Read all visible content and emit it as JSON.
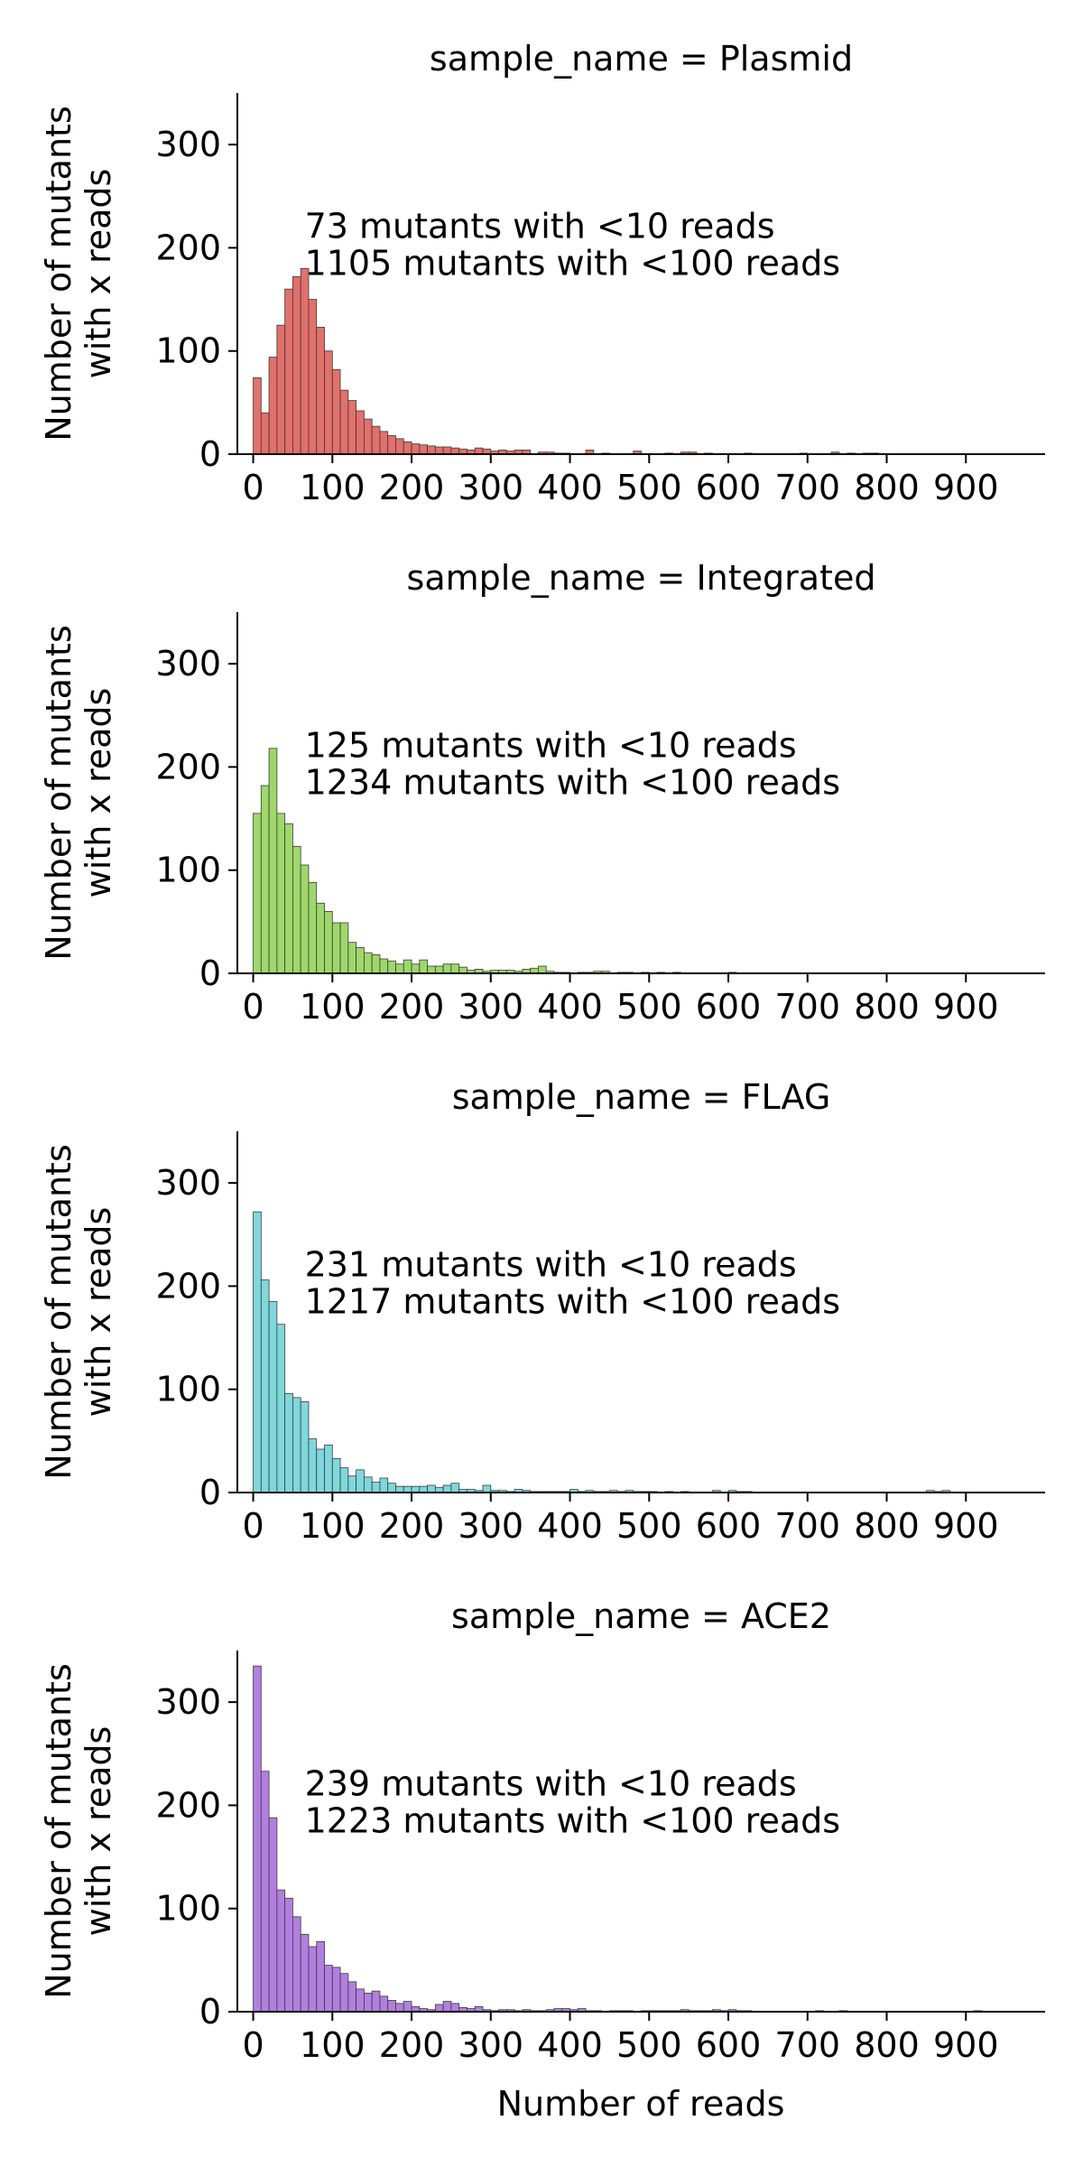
{
  "figure": {
    "xlabel": "Number of reads",
    "ylabel_line1": "Number of mutants",
    "ylabel_line2": "with x reads"
  },
  "chart_data": [
    {
      "type": "bar",
      "title": "sample_name = Plasmid",
      "facet_value": "Plasmid",
      "color": "#e2706b",
      "xlim": [
        -20,
        1000
      ],
      "ylim": [
        0,
        350
      ],
      "xticks": [
        0,
        100,
        200,
        300,
        400,
        500,
        600,
        700,
        800,
        900
      ],
      "yticks": [
        0,
        100,
        200,
        300
      ],
      "bin_width": 10,
      "annotation_line1": "73 mutants with <10 reads",
      "annotation_line2": "1105 mutants with <100 reads",
      "counts": [
        74,
        40,
        94,
        125,
        160,
        172,
        180,
        150,
        123,
        100,
        82,
        62,
        52,
        42,
        34,
        27,
        22,
        18,
        15,
        12,
        10,
        9,
        8,
        7,
        7,
        6,
        5,
        4,
        6,
        5,
        3,
        4,
        3,
        4,
        4,
        0,
        2,
        2,
        1,
        1,
        0,
        0,
        4,
        0,
        1,
        0,
        0,
        0,
        3,
        0,
        0,
        0,
        1,
        0,
        2,
        2,
        0,
        1,
        0,
        0,
        0,
        0,
        1,
        0,
        0,
        0,
        0,
        0,
        0,
        1,
        0,
        0,
        0,
        2,
        0,
        1,
        0,
        1,
        1,
        0,
        0,
        0,
        0,
        0,
        0,
        0,
        0,
        0,
        0,
        0,
        0,
        0,
        0,
        0,
        0,
        0,
        0,
        0,
        0,
        0
      ]
    },
    {
      "type": "bar",
      "title": "sample_name = Integrated",
      "facet_value": "Integrated",
      "color": "#9ed86a",
      "xlim": [
        -20,
        1000
      ],
      "ylim": [
        0,
        350
      ],
      "xticks": [
        0,
        100,
        200,
        300,
        400,
        500,
        600,
        700,
        800,
        900
      ],
      "yticks": [
        0,
        100,
        200,
        300
      ],
      "bin_width": 10,
      "annotation_line1": "125 mutants with <10 reads",
      "annotation_line2": "1234 mutants with <100 reads",
      "counts": [
        155,
        182,
        218,
        155,
        145,
        123,
        105,
        88,
        68,
        60,
        49,
        49,
        30,
        25,
        20,
        18,
        14,
        12,
        9,
        13,
        9,
        13,
        7,
        7,
        9,
        9,
        6,
        3,
        4,
        2,
        3,
        3,
        3,
        2,
        4,
        5,
        7,
        2,
        1,
        1,
        0,
        1,
        1,
        2,
        2,
        0,
        1,
        1,
        0,
        1,
        0,
        1,
        0,
        1,
        0,
        0,
        0,
        0,
        0,
        0,
        1,
        0,
        0,
        0,
        0,
        0,
        0,
        0,
        0,
        0,
        0,
        0,
        0,
        0,
        0,
        0,
        0,
        0,
        0,
        0,
        0,
        0,
        0,
        0,
        0,
        0,
        0,
        0,
        0,
        0,
        0,
        0,
        0,
        0,
        0,
        0,
        0,
        0,
        0,
        0
      ]
    },
    {
      "type": "bar",
      "title": "sample_name = FLAG",
      "facet_value": "FLAG",
      "color": "#7fd8dc",
      "xlim": [
        -20,
        1000
      ],
      "ylim": [
        0,
        350
      ],
      "xticks": [
        0,
        100,
        200,
        300,
        400,
        500,
        600,
        700,
        800,
        900
      ],
      "yticks": [
        0,
        100,
        200,
        300
      ],
      "bin_width": 10,
      "annotation_line1": "231 mutants with <10 reads",
      "annotation_line2": "1217 mutants with <100 reads",
      "counts": [
        272,
        206,
        185,
        163,
        96,
        92,
        88,
        52,
        42,
        46,
        33,
        24,
        16,
        22,
        15,
        10,
        14,
        9,
        6,
        6,
        6,
        6,
        7,
        5,
        7,
        9,
        3,
        3,
        2,
        7,
        2,
        2,
        1,
        3,
        2,
        1,
        1,
        1,
        1,
        1,
        3,
        1,
        2,
        1,
        1,
        2,
        1,
        2,
        1,
        1,
        1,
        0,
        1,
        0,
        1,
        0,
        0,
        0,
        2,
        0,
        2,
        1,
        1,
        0,
        0,
        0,
        0,
        0,
        0,
        0,
        0,
        0,
        0,
        0,
        0,
        0,
        0,
        0,
        0,
        0,
        0,
        0,
        0,
        0,
        0,
        2,
        1,
        2,
        0,
        0,
        0,
        0,
        0,
        0,
        0,
        0,
        0,
        0,
        0,
        0
      ]
    },
    {
      "type": "bar",
      "title": "sample_name = ACE2",
      "facet_value": "ACE2",
      "color": "#b27fe0",
      "xlim": [
        -20,
        1000
      ],
      "ylim": [
        0,
        350
      ],
      "xticks": [
        0,
        100,
        200,
        300,
        400,
        500,
        600,
        700,
        800,
        900
      ],
      "yticks": [
        0,
        100,
        200,
        300
      ],
      "bin_width": 10,
      "annotation_line1": "239 mutants with <10 reads",
      "annotation_line2": "1223 mutants with <100 reads",
      "counts": [
        335,
        233,
        188,
        118,
        110,
        92,
        75,
        63,
        68,
        45,
        43,
        37,
        29,
        22,
        18,
        20,
        15,
        11,
        8,
        10,
        5,
        3,
        2,
        7,
        10,
        8,
        4,
        3,
        5,
        2,
        1,
        2,
        2,
        1,
        2,
        1,
        1,
        2,
        3,
        3,
        2,
        3,
        1,
        1,
        0,
        1,
        1,
        1,
        0,
        1,
        1,
        1,
        1,
        1,
        2,
        1,
        1,
        1,
        2,
        1,
        2,
        1,
        1,
        0,
        0,
        0,
        0,
        0,
        0,
        0,
        0,
        1,
        0,
        0,
        1,
        0,
        0,
        0,
        0,
        0,
        0,
        0,
        0,
        0,
        0,
        0,
        0,
        0,
        0,
        0,
        0,
        1,
        0,
        0,
        0,
        0,
        0,
        0,
        0,
        0
      ]
    }
  ]
}
